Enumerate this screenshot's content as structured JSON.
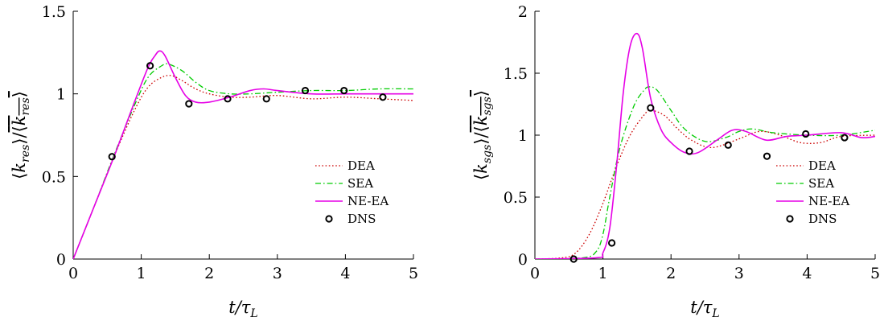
{
  "chart_data": [
    {
      "type": "line",
      "xlabel": "t/τL",
      "ylabel": "⟨kres⟩/⟨kres⟩",
      "xlim": [
        0,
        5
      ],
      "ylim": [
        0,
        1.5
      ],
      "xticks": [
        "0",
        "1",
        "2",
        "3",
        "4",
        "5"
      ],
      "yticks": [
        "0",
        "0.5",
        "1",
        "1.5"
      ],
      "legend": "bottom-right",
      "series": [
        {
          "name": "DEA",
          "color": "#cc0000",
          "style": "dotted",
          "x": [
            0,
            0.3,
            0.6,
            0.9,
            1.1,
            1.3,
            1.45,
            1.6,
            1.8,
            2.0,
            2.3,
            2.6,
            3.0,
            3.5,
            4.0,
            4.5,
            5.0
          ],
          "y": [
            0,
            0.31,
            0.62,
            0.9,
            1.04,
            1.1,
            1.11,
            1.08,
            1.03,
            1.0,
            0.98,
            0.98,
            0.99,
            0.97,
            0.98,
            0.97,
            0.96
          ]
        },
        {
          "name": "SEA",
          "color": "#00cc00",
          "style": "dashdot",
          "x": [
            0,
            0.3,
            0.6,
            0.9,
            1.1,
            1.3,
            1.4,
            1.6,
            1.8,
            2.0,
            2.3,
            2.6,
            3.0,
            3.5,
            4.0,
            4.5,
            5.0
          ],
          "y": [
            0,
            0.31,
            0.63,
            0.93,
            1.1,
            1.17,
            1.18,
            1.14,
            1.07,
            1.02,
            1.0,
            1.0,
            1.01,
            1.02,
            1.02,
            1.03,
            1.03
          ]
        },
        {
          "name": "NE-EA",
          "color": "#e600e6",
          "style": "solid",
          "x": [
            0,
            0.3,
            0.6,
            0.9,
            1.1,
            1.2,
            1.27,
            1.35,
            1.5,
            1.65,
            1.8,
            2.0,
            2.3,
            2.6,
            2.8,
            3.0,
            3.5,
            4.0,
            4.5,
            5.0
          ],
          "y": [
            0,
            0.31,
            0.62,
            0.95,
            1.16,
            1.23,
            1.26,
            1.23,
            1.1,
            0.99,
            0.95,
            0.95,
            0.98,
            1.02,
            1.03,
            1.02,
            1.0,
            1.0,
            1.0,
            1.0
          ]
        },
        {
          "name": "DNS",
          "color": "#000000",
          "style": "markers",
          "x": [
            0.57,
            1.13,
            1.7,
            2.27,
            2.84,
            3.41,
            3.98,
            4.55
          ],
          "y": [
            0.62,
            1.17,
            0.94,
            0.97,
            0.97,
            1.02,
            1.02,
            0.98
          ]
        }
      ]
    },
    {
      "type": "line",
      "xlabel": "t/τL",
      "ylabel": "⟨ksgs⟩/⟨ksgs⟩",
      "xlim": [
        0,
        5
      ],
      "ylim": [
        0,
        2
      ],
      "xticks": [
        "0",
        "1",
        "2",
        "3",
        "4",
        "5"
      ],
      "yticks": [
        "0",
        "0.5",
        "1",
        "1.5",
        "2"
      ],
      "legend": "bottom-right",
      "series": [
        {
          "name": "DEA",
          "color": "#cc0000",
          "style": "dotted",
          "x": [
            0,
            0.4,
            0.6,
            0.8,
            1.0,
            1.2,
            1.4,
            1.6,
            1.7,
            1.9,
            2.1,
            2.3,
            2.6,
            3.0,
            3.3,
            3.6,
            3.9,
            4.2,
            4.5,
            5.0
          ],
          "y": [
            0,
            0.01,
            0.05,
            0.2,
            0.45,
            0.75,
            1.0,
            1.16,
            1.2,
            1.16,
            1.05,
            0.96,
            0.9,
            0.97,
            1.03,
            1.0,
            0.94,
            0.94,
            0.99,
            1.0
          ]
        },
        {
          "name": "SEA",
          "color": "#00cc00",
          "style": "dashdot",
          "x": [
            0,
            0.7,
            0.9,
            1.0,
            1.1,
            1.25,
            1.45,
            1.6,
            1.68,
            1.8,
            2.0,
            2.2,
            2.5,
            2.8,
            3.0,
            3.2,
            3.5,
            4.0,
            4.5,
            5.0
          ],
          "y": [
            0,
            0.01,
            0.06,
            0.2,
            0.5,
            0.9,
            1.23,
            1.36,
            1.39,
            1.36,
            1.2,
            1.05,
            0.95,
            0.98,
            1.03,
            1.05,
            1.02,
            1.0,
            1.0,
            1.04
          ]
        },
        {
          "name": "NE-EA",
          "color": "#e600e6",
          "style": "solid",
          "x": [
            0,
            0.9,
            1.0,
            1.1,
            1.2,
            1.3,
            1.4,
            1.5,
            1.58,
            1.7,
            1.85,
            2.0,
            2.2,
            2.4,
            2.7,
            2.9,
            3.1,
            3.4,
            3.7,
            4.0,
            4.5,
            4.8,
            5.0
          ],
          "y": [
            0,
            0.01,
            0.05,
            0.25,
            0.75,
            1.35,
            1.72,
            1.82,
            1.7,
            1.3,
            1.05,
            0.94,
            0.86,
            0.86,
            0.97,
            1.04,
            1.03,
            0.96,
            0.99,
            1.0,
            1.02,
            0.98,
            0.99
          ]
        },
        {
          "name": "DNS",
          "color": "#000000",
          "style": "markers",
          "x": [
            0.57,
            1.13,
            1.7,
            2.27,
            2.84,
            3.41,
            3.98,
            4.55
          ],
          "y": [
            0.0,
            0.13,
            1.22,
            0.87,
            0.92,
            0.83,
            1.01,
            0.98
          ]
        }
      ]
    }
  ]
}
